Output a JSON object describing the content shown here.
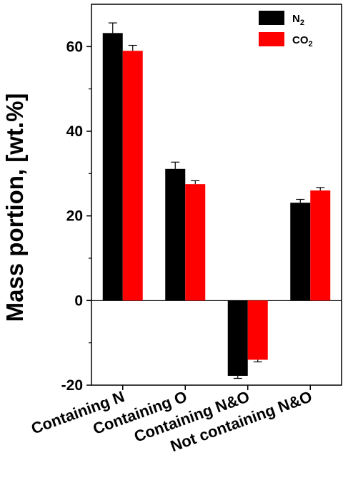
{
  "chart_data": {
    "type": "bar",
    "ylabel": "Mass portion, [wt.%]",
    "xlabel": "",
    "ylim": [
      -20,
      70
    ],
    "yticks": [
      -20,
      0,
      20,
      40,
      60
    ],
    "categories": [
      "Containing N",
      "Containing O",
      "Containing N&O",
      "Not containing N&O"
    ],
    "series": [
      {
        "name": "N",
        "subscript": "2",
        "color": "#000000",
        "values": [
          63.2,
          31.1,
          -17.8,
          23.1
        ],
        "errors": [
          2.4,
          1.6,
          0.6,
          0.8
        ]
      },
      {
        "name": "CO",
        "subscript": "2",
        "color": "#ff0000",
        "values": [
          59.0,
          27.5,
          -14.0,
          26.0
        ],
        "errors": [
          1.3,
          0.8,
          0.5,
          0.7
        ]
      }
    ],
    "legend": "top-right",
    "grid": false
  }
}
